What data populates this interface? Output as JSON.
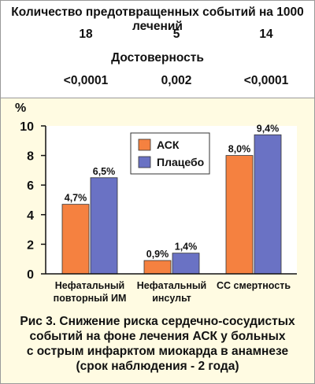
{
  "header": {
    "events_title": "Количество предотвращенных событий на 1000 лечений",
    "events_values": [
      "18",
      "5",
      "14"
    ],
    "significance_title": "Достоверность",
    "significance_values": [
      "<0,0001",
      "0,002",
      "<0,0001"
    ]
  },
  "chart_data": {
    "type": "bar",
    "ylabel": "%",
    "ylim": [
      0,
      10
    ],
    "yticks": [
      "0",
      "2",
      "4",
      "6",
      "8",
      "10"
    ],
    "categories": [
      [
        "Нефатальный",
        "повторный ИМ"
      ],
      [
        "Нефатальный",
        "инсульт"
      ],
      [
        "СС смертность"
      ]
    ],
    "series": [
      {
        "name": "АСК",
        "color": "#f58140",
        "values": [
          4.7,
          0.9,
          8.0
        ],
        "labels": [
          "4,7%",
          "0,9%",
          "8,0%"
        ]
      },
      {
        "name": "Плацебо",
        "color": "#6a72c4",
        "values": [
          6.5,
          1.4,
          9.4
        ],
        "labels": [
          "6,5%",
          "1,4%",
          "9,4%"
        ]
      }
    ],
    "legend_position": "top-center",
    "grid": false
  },
  "caption": {
    "lines": [
      "Рис 3. Снижение риска сердечно-сосудистых",
      "событий на фоне лечения АСК у больных",
      "с острым инфарктом миокарда в анамнезе",
      "(срок наблюдения - 2 года)"
    ]
  }
}
